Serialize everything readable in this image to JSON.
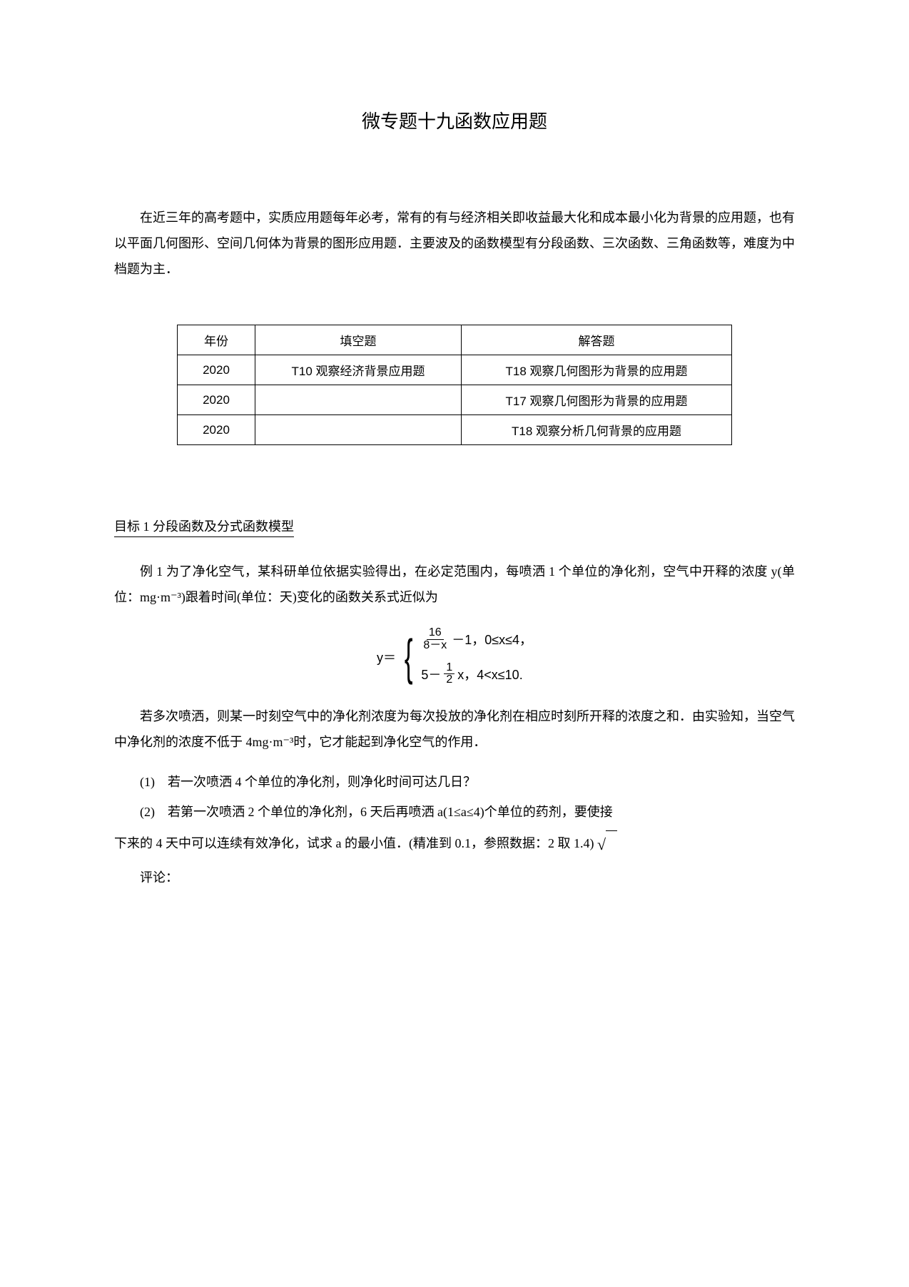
{
  "title": "微专题十九函数应用题",
  "intro": "在近三年的高考题中，实质应用题每年必考，常有的有与经济相关即收益最大化和成本最小化为背景的应用题，也有以平面几何图形、空间几何体为背景的图形应用题．主要波及的函数模型有分段函数、三次函数、三角函数等，难度为中档题为主．",
  "table": {
    "headers": [
      "年份",
      "填空题",
      "解答题"
    ],
    "rows": [
      [
        "2020",
        "T10 观察经济背景应用题",
        "T18 观察几何图形为背景的应用题"
      ],
      [
        "2020",
        "",
        "T17 观察几何图形为背景的应用题"
      ],
      [
        "2020",
        "",
        "T18 观察分析几何背景的应用题"
      ]
    ],
    "col_widths": [
      "80px",
      "260px",
      "350px"
    ],
    "border_color": "#000000",
    "font_size": 17
  },
  "section_head": "目标 1 分段函数及分式函数模型",
  "example_intro": "例 1 为了净化空气，某科研单位依据实验得出，在必定范围内，每喷洒 1 个单位的净化剂，空气中开释的浓度 y(单位：mg·m⁻³)跟着时间(单位：天)变化的函数关系式近似为",
  "formula": {
    "lhs": "y＝",
    "case1": {
      "frac_num": "16",
      "frac_den": "8－x",
      "tail": "－1，0≤x≤4，"
    },
    "case2": {
      "lead": "5－",
      "frac_num": "1",
      "frac_den": "2",
      "tail": "x，4<x≤10."
    }
  },
  "after_formula": "若多次喷洒，则某一时刻空气中的净化剂浓度为每次投放的净化剂在相应时刻所开释的浓度之和．由实验知，当空气中净化剂的浓度不低于 4mg·m⁻³时，它才能起到净化空气的作用．",
  "q1": "(1)　若一次喷洒 4 个单位的净化剂，则净化时间可达几日？",
  "q2": "(2)　若第一次喷洒 2 个单位的净化剂，6 天后再喷洒 a(1≤a≤4)个单位的药剂，要使接",
  "q2_cont": "下来的 4 天中可以连续有效净化，试求 a 的最小值．(精准到 0.1，参照数据：2 取 1.4)",
  "comment_label": "评论：",
  "colors": {
    "text": "#000000",
    "background": "#ffffff"
  },
  "typography": {
    "title_fontsize": 26,
    "body_fontsize": 18,
    "line_height": 2.0,
    "font_family": "SimSun"
  }
}
